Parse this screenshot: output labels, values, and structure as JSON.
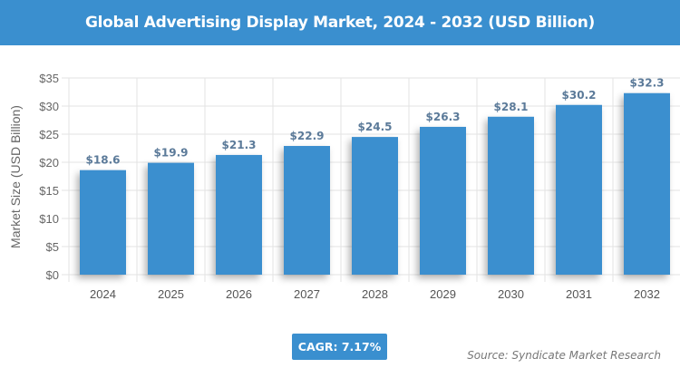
{
  "chart_data": {
    "type": "bar",
    "title": "Global Advertising Display Market, 2024 - 2032 (USD Billion)",
    "xlabel": "",
    "ylabel": "Market Size (USD Billion)",
    "categories": [
      "2024",
      "2025",
      "2026",
      "2027",
      "2028",
      "2029",
      "2030",
      "2031",
      "2032"
    ],
    "values": [
      18.6,
      19.9,
      21.3,
      22.9,
      24.5,
      26.3,
      28.1,
      30.2,
      32.3
    ],
    "data_labels": [
      "$18.6",
      "$19.9",
      "$21.3",
      "$22.9",
      "$24.5",
      "$26.3",
      "$28.1",
      "$30.2",
      "$32.3"
    ],
    "ylim": [
      0,
      35
    ],
    "yticks": [
      0,
      5,
      10,
      15,
      20,
      25,
      30,
      35
    ],
    "ytick_labels": [
      "$0",
      "$5",
      "$10",
      "$15",
      "$20",
      "$25",
      "$30",
      "$35"
    ],
    "grid": true,
    "bar_color": "#3a8fcf",
    "label_color": "#5b7a99"
  },
  "cagr_label": "CAGR: 7.17%",
  "source": "Source: Syndicate Market Research",
  "header_color": "#3a8fcf"
}
